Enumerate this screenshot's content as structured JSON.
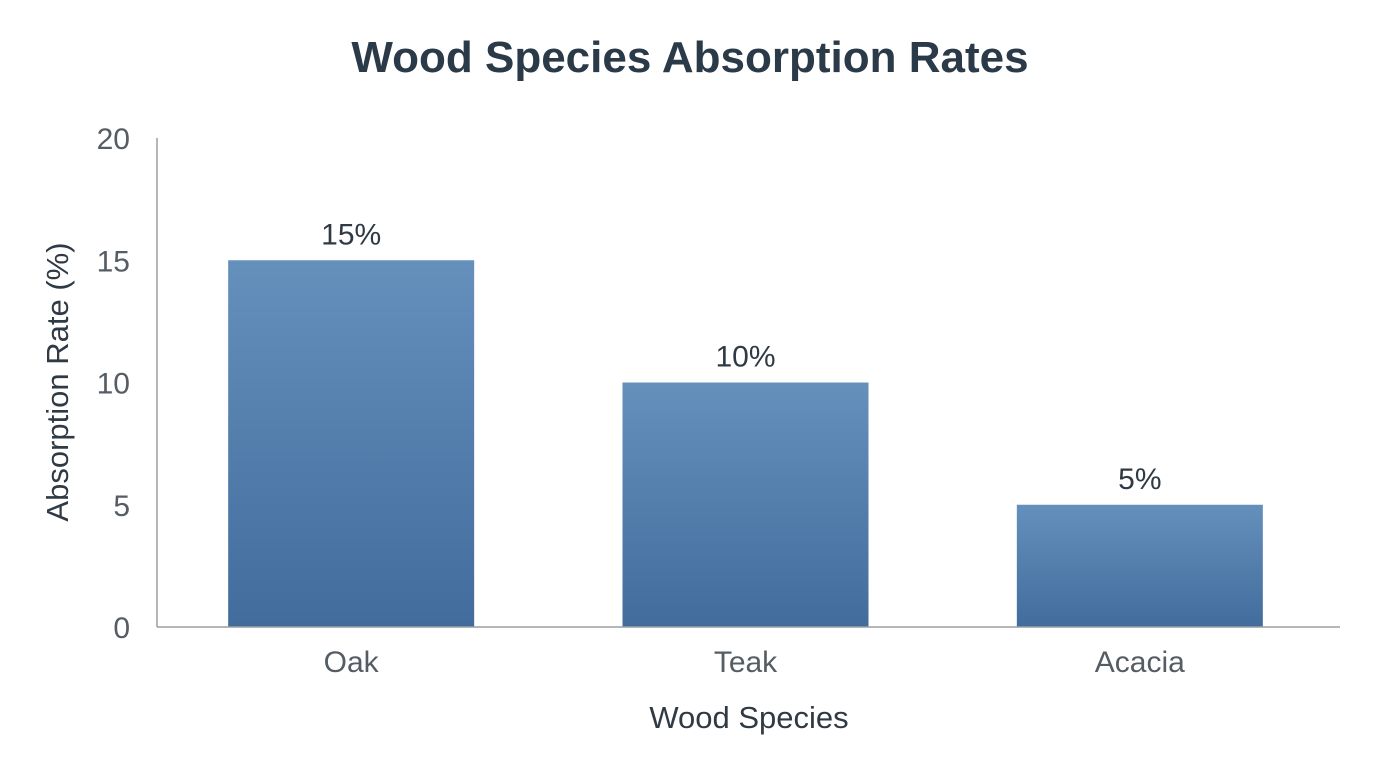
{
  "chart_data": {
    "type": "bar",
    "title": "Wood Species Absorption Rates",
    "xlabel": "Wood Species",
    "ylabel": "Absorption Rate (%)",
    "categories": [
      "Oak",
      "Teak",
      "Acacia"
    ],
    "values": [
      15,
      10,
      5
    ],
    "data_labels": [
      "15%",
      "10%",
      "5%"
    ],
    "ylim": [
      0,
      20
    ],
    "yticks": [
      0,
      5,
      10,
      15,
      20
    ],
    "grid": false,
    "colors": {
      "bar_top": "#6590bc",
      "bar_bottom": "#416c9c",
      "axis": "#9a9fa4"
    }
  }
}
